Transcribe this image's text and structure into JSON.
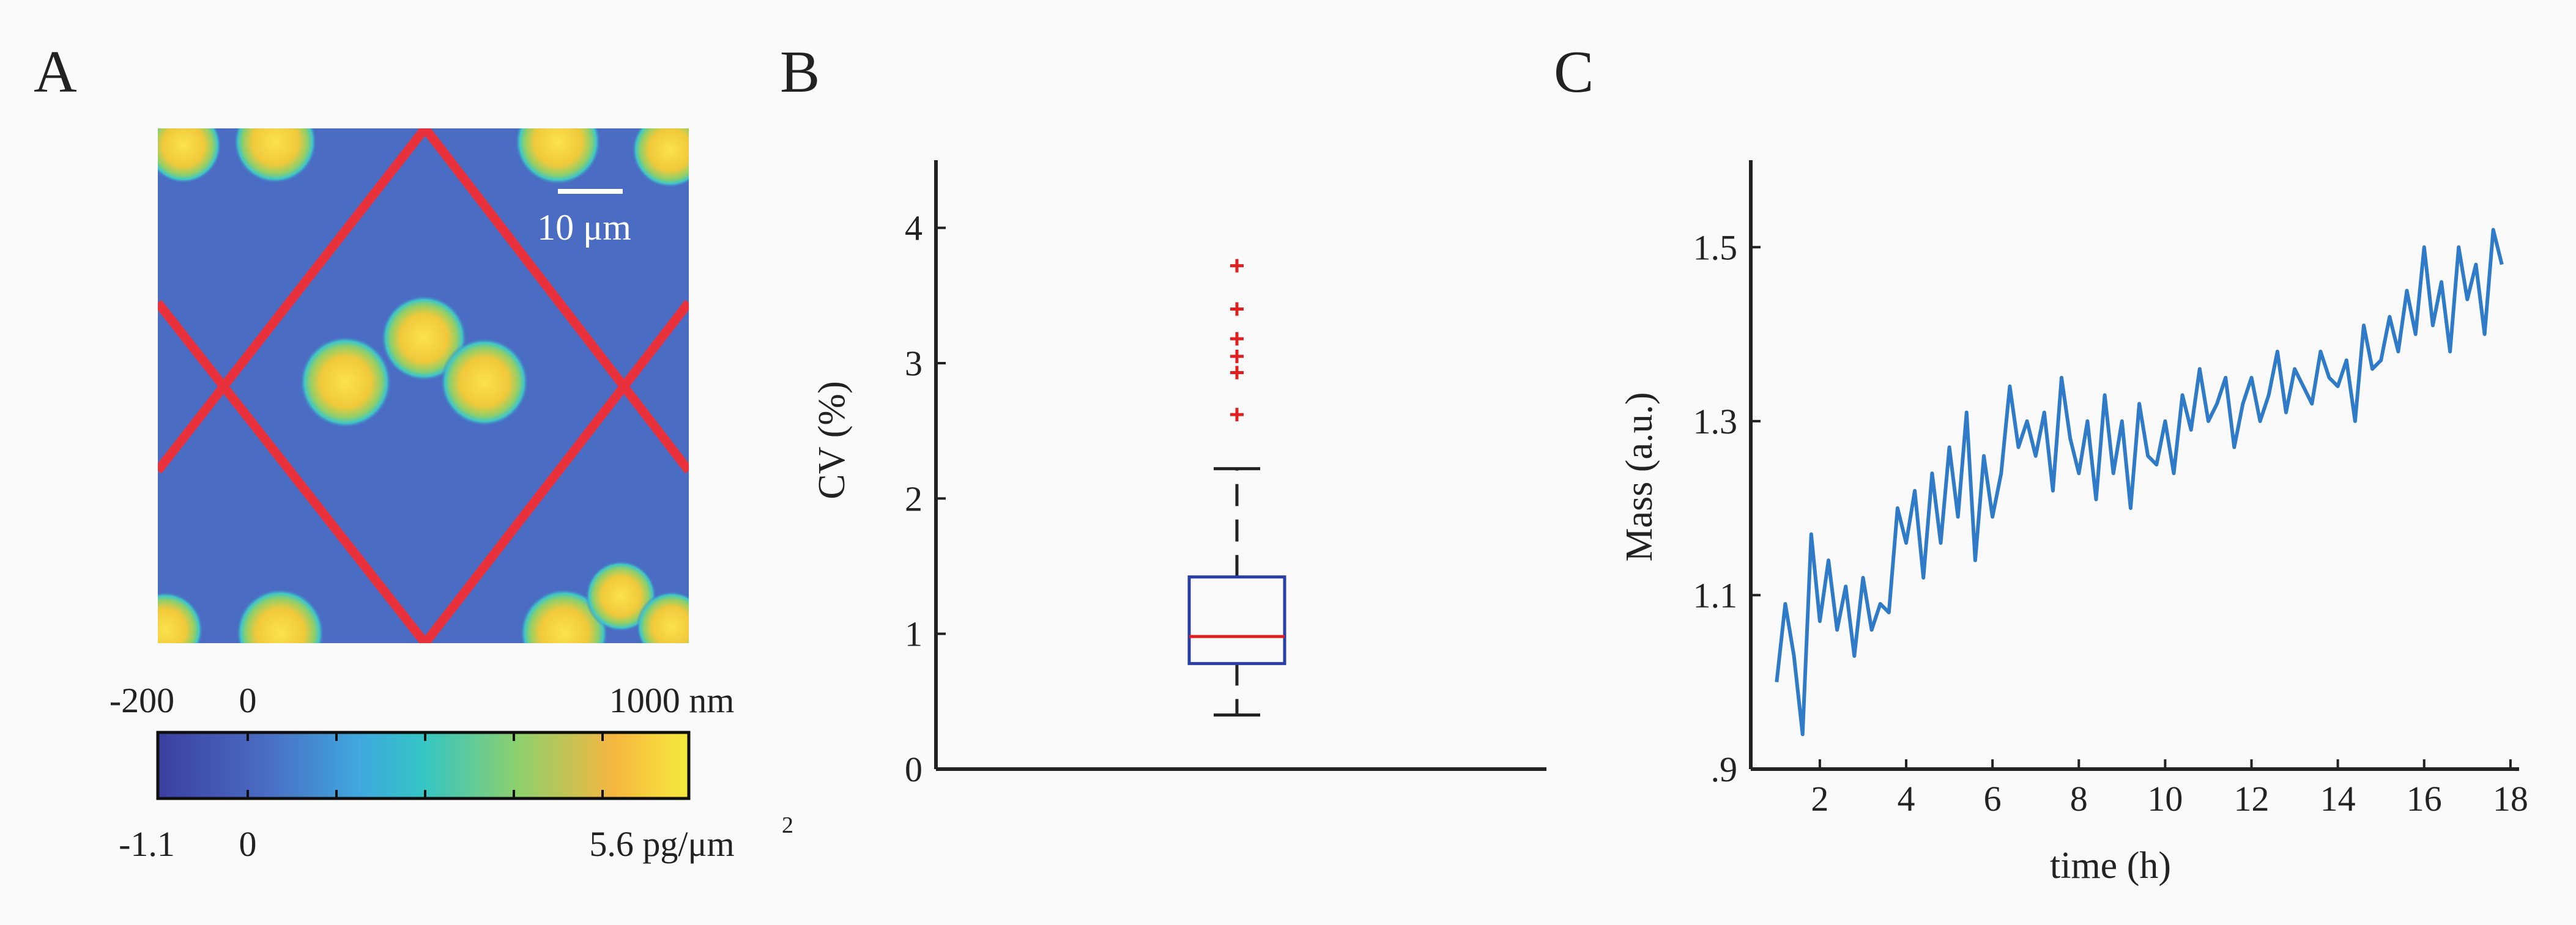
{
  "panel_a": {
    "label": "A",
    "scale_bar_label": "10 μm",
    "height_ticks": [
      "-200",
      "0",
      "1000 nm"
    ],
    "mass_ticks": [
      "-1.1",
      "0",
      "5.6 pg/μm"
    ],
    "mass_unit_superscript": "2",
    "colors": {
      "background": "#4a6cc3",
      "cell_core": "#f2d24a",
      "cell_rim": "#4ac8c8",
      "grid": "#e8313a"
    }
  },
  "chart_data": [
    {
      "label": "B",
      "type": "box",
      "ylabel": "CV (%)",
      "ylim": [
        0,
        4.5
      ],
      "yticks": [
        0,
        1,
        2,
        3,
        4
      ],
      "box": {
        "min": 0.4,
        "q1": 0.78,
        "median": 0.98,
        "q3": 1.42,
        "max": 2.22
      },
      "outliers": [
        2.62,
        2.93,
        3.05,
        3.18,
        3.4,
        3.72
      ],
      "colors": {
        "box": "#2a3fa6",
        "median": "#e02020",
        "outlier": "#e02020",
        "whisker": "#222222"
      }
    },
    {
      "label": "C",
      "type": "line",
      "xlabel": "time (h)",
      "ylabel": "Mass (a.u.)",
      "xlim": [
        0.4,
        18.2
      ],
      "ylim": [
        0.9,
        1.6
      ],
      "xticks": [
        2,
        4,
        6,
        8,
        10,
        12,
        14,
        16,
        18
      ],
      "yticks": [
        0.9,
        1.1,
        1.3,
        1.5
      ],
      "ytick_labels": [
        ".9",
        "1.1",
        "1.3",
        "1.5"
      ],
      "color": "#2f7bc8",
      "x": [
        1.0,
        1.2,
        1.4,
        1.6,
        1.8,
        2.0,
        2.2,
        2.4,
        2.6,
        2.8,
        3.0,
        3.2,
        3.4,
        3.6,
        3.8,
        4.0,
        4.2,
        4.4,
        4.6,
        4.8,
        5.0,
        5.2,
        5.4,
        5.6,
        5.8,
        6.0,
        6.2,
        6.4,
        6.6,
        6.8,
        7.0,
        7.2,
        7.4,
        7.6,
        7.8,
        8.0,
        8.2,
        8.4,
        8.6,
        8.8,
        9.0,
        9.2,
        9.4,
        9.6,
        9.8,
        10.0,
        10.2,
        10.4,
        10.6,
        10.8,
        11.0,
        11.2,
        11.4,
        11.6,
        11.8,
        12.0,
        12.2,
        12.4,
        12.6,
        12.8,
        13.0,
        13.2,
        13.4,
        13.6,
        13.8,
        14.0,
        14.2,
        14.4,
        14.6,
        14.8,
        15.0,
        15.2,
        15.4,
        15.6,
        15.8,
        16.0,
        16.2,
        16.4,
        16.6,
        16.8,
        17.0,
        17.2,
        17.4,
        17.6,
        17.8
      ],
      "y": [
        1.0,
        1.09,
        1.03,
        0.94,
        1.17,
        1.07,
        1.14,
        1.06,
        1.11,
        1.03,
        1.12,
        1.06,
        1.09,
        1.08,
        1.2,
        1.16,
        1.22,
        1.12,
        1.24,
        1.16,
        1.27,
        1.19,
        1.31,
        1.14,
        1.26,
        1.19,
        1.24,
        1.34,
        1.27,
        1.3,
        1.26,
        1.31,
        1.22,
        1.35,
        1.28,
        1.24,
        1.3,
        1.21,
        1.33,
        1.24,
        1.3,
        1.2,
        1.32,
        1.26,
        1.25,
        1.3,
        1.24,
        1.33,
        1.29,
        1.36,
        1.3,
        1.32,
        1.35,
        1.27,
        1.32,
        1.35,
        1.3,
        1.33,
        1.38,
        1.31,
        1.36,
        1.34,
        1.32,
        1.38,
        1.35,
        1.34,
        1.37,
        1.3,
        1.41,
        1.36,
        1.37,
        1.42,
        1.38,
        1.45,
        1.4,
        1.5,
        1.41,
        1.46,
        1.38,
        1.5,
        1.44,
        1.48,
        1.4,
        1.52,
        1.48
      ]
    }
  ]
}
